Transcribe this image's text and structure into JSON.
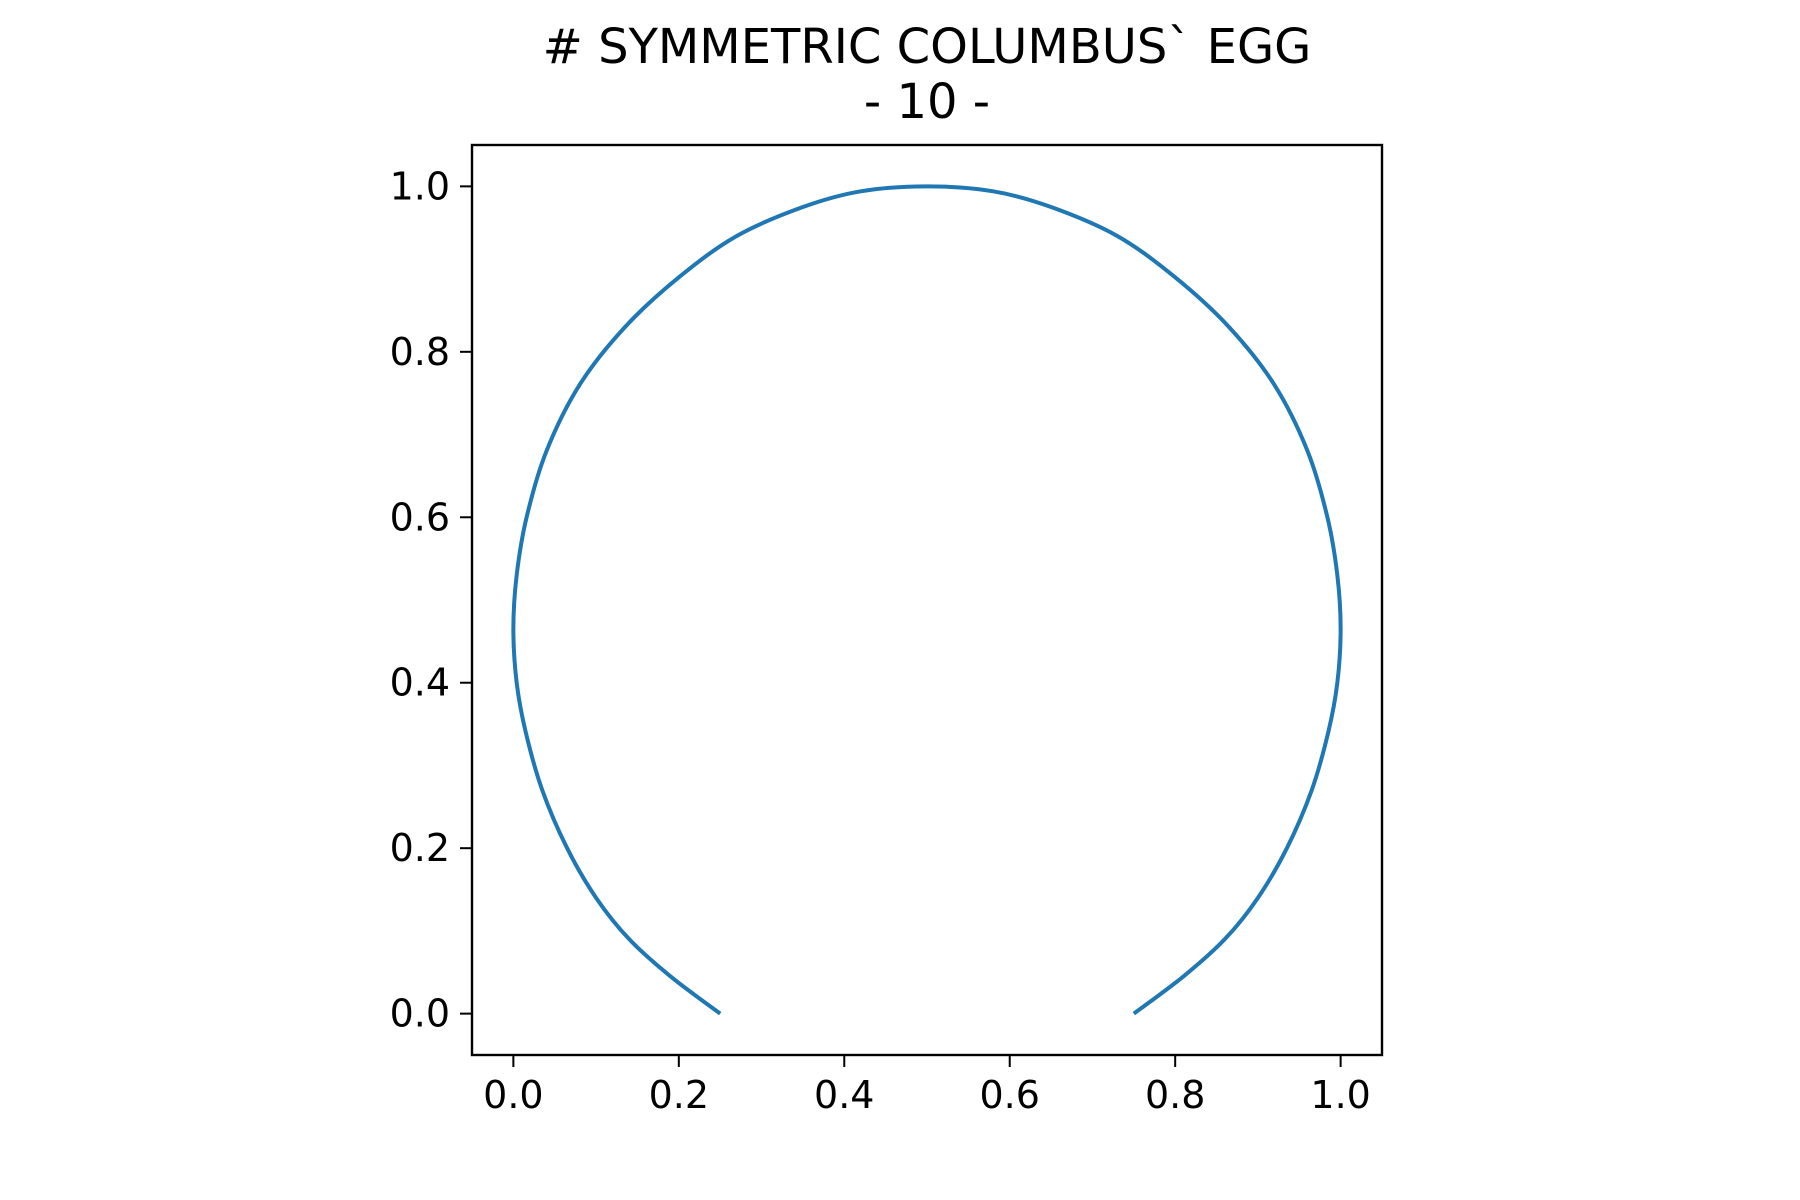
{
  "chart_data": {
    "type": "line",
    "title": "# SYMMETRIC COLUMBUS` EGG",
    "subtitle": "- 10 -",
    "xlabel": "",
    "ylabel": "",
    "xlim": [
      -0.05,
      1.05
    ],
    "ylim": [
      -0.05,
      1.05
    ],
    "grid": false,
    "x_ticks": [
      "0.0",
      "0.2",
      "0.4",
      "0.6",
      "0.8",
      "1.0"
    ],
    "y_ticks": [
      "0.0",
      "0.2",
      "0.4",
      "0.6",
      "0.8",
      "1.0"
    ],
    "series": [
      {
        "color": "#1f77b4",
        "points": [
          [
            0.25,
            0.0
          ],
          [
            0.19,
            0.045
          ],
          [
            0.14,
            0.09
          ],
          [
            0.1,
            0.14
          ],
          [
            0.065,
            0.2
          ],
          [
            0.035,
            0.27
          ],
          [
            0.015,
            0.34
          ],
          [
            0.004,
            0.4
          ],
          [
            0.0,
            0.465
          ],
          [
            0.004,
            0.53
          ],
          [
            0.016,
            0.6
          ],
          [
            0.04,
            0.68
          ],
          [
            0.08,
            0.76
          ],
          [
            0.135,
            0.83
          ],
          [
            0.2,
            0.89
          ],
          [
            0.27,
            0.94
          ],
          [
            0.35,
            0.975
          ],
          [
            0.42,
            0.994
          ],
          [
            0.5,
            1.0
          ],
          [
            0.58,
            0.994
          ],
          [
            0.65,
            0.975
          ],
          [
            0.73,
            0.94
          ],
          [
            0.8,
            0.89
          ],
          [
            0.865,
            0.83
          ],
          [
            0.92,
            0.76
          ],
          [
            0.96,
            0.68
          ],
          [
            0.984,
            0.6
          ],
          [
            0.996,
            0.53
          ],
          [
            1.0,
            0.465
          ],
          [
            0.996,
            0.4
          ],
          [
            0.985,
            0.34
          ],
          [
            0.965,
            0.27
          ],
          [
            0.935,
            0.2
          ],
          [
            0.9,
            0.14
          ],
          [
            0.86,
            0.09
          ],
          [
            0.81,
            0.045
          ],
          [
            0.75,
            0.0
          ]
        ]
      }
    ]
  }
}
